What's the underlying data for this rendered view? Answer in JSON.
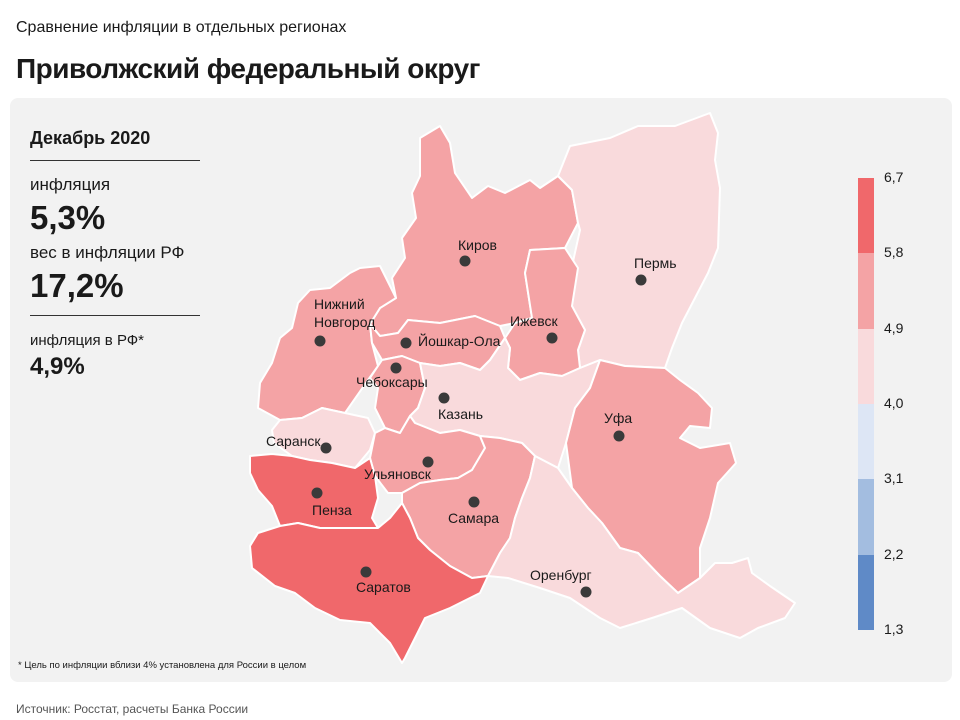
{
  "header": {
    "subtitle": "Сравнение инфляции  в отдельных регионах",
    "title": "Приволжский федеральный округ"
  },
  "stats": {
    "period": "Декабрь 2020",
    "inflation_label": "инфляция",
    "inflation_value": "5,3%",
    "weight_label": "вес в инфляции  РФ",
    "weight_value": "17,2%",
    "rf_inflation_label": "инфляция  в РФ*",
    "rf_inflation_value": "4,9%"
  },
  "footnote": "* Цель по инфляции вблизи 4% установлена для России в целом",
  "source": "Источник: Росстат, расчеты Банка России",
  "legend": {
    "ticks": [
      "6,7",
      "5,8",
      "4,9",
      "4,0",
      "3,1",
      "2,2",
      "1,3"
    ],
    "bins": [
      {
        "from": 5.8,
        "to": 6.7,
        "color": "#f0686b"
      },
      {
        "from": 4.9,
        "to": 5.8,
        "color": "#f4a3a5"
      },
      {
        "from": 4.0,
        "to": 4.9,
        "color": "#f9dadc"
      },
      {
        "from": 3.1,
        "to": 4.0,
        "color": "#dde6f5"
      },
      {
        "from": 2.2,
        "to": 3.1,
        "color": "#a3bde0"
      },
      {
        "from": 1.3,
        "to": 2.2,
        "color": "#5f8ac7"
      }
    ]
  },
  "regions": [
    {
      "name": "Киров",
      "color": "#f4a3a5"
    },
    {
      "name": "Пермь",
      "color": "#f9dadc"
    },
    {
      "name": "Нижний Новгород",
      "label_line1": "Нижний",
      "label_line2": "Новгород",
      "color": "#f4a3a5"
    },
    {
      "name": "Йошкар-Ола",
      "color": "#f4a3a5"
    },
    {
      "name": "Ижевск",
      "color": "#f4a3a5"
    },
    {
      "name": "Чебоксары",
      "color": "#f4a3a5"
    },
    {
      "name": "Казань",
      "color": "#f9dadc"
    },
    {
      "name": "Уфа",
      "color": "#f4a3a5"
    },
    {
      "name": "Саранск",
      "color": "#f9dadc"
    },
    {
      "name": "Ульяновск",
      "color": "#f4a3a5"
    },
    {
      "name": "Пенза",
      "color": "#f0686b"
    },
    {
      "name": "Самара",
      "color": "#f4a3a5"
    },
    {
      "name": "Саратов",
      "color": "#f0686b"
    },
    {
      "name": "Оренбург",
      "color": "#f9dadc"
    }
  ]
}
